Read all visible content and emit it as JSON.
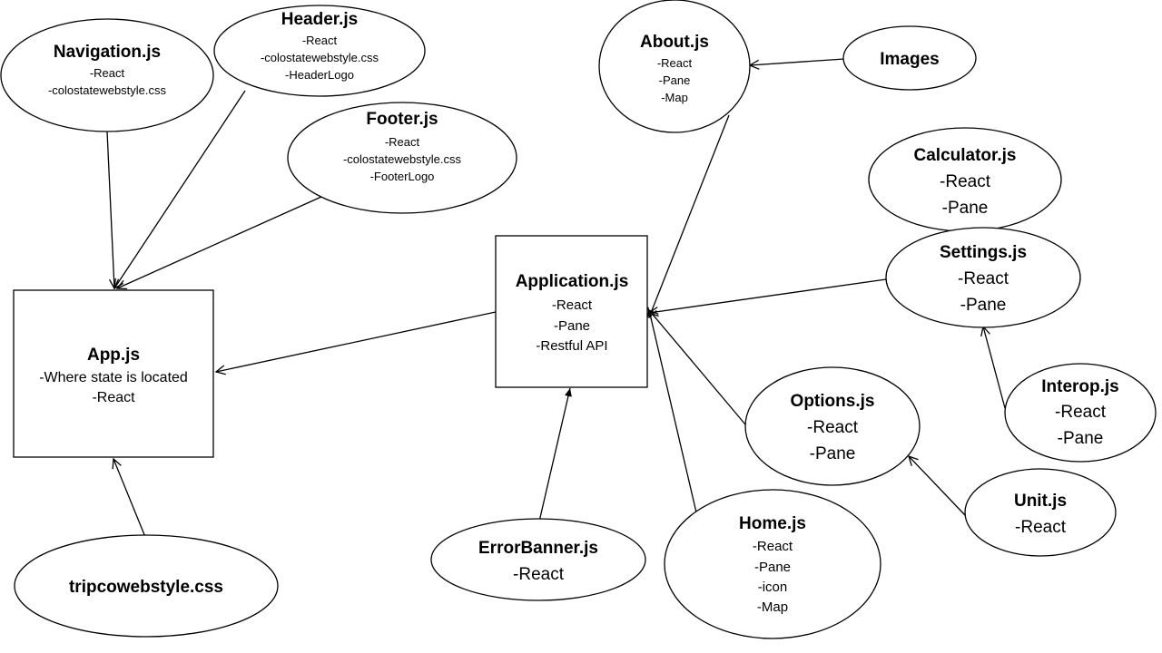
{
  "nodes": {
    "navigation": {
      "title": "Navigation.js",
      "items": [
        "-React",
        "-colostatewebstyle.css"
      ]
    },
    "header": {
      "title": "Header.js",
      "items": [
        "-React",
        "-colostatewebstyle.css",
        "-HeaderLogo"
      ]
    },
    "footer": {
      "title": "Footer.js",
      "items": [
        "-React",
        "-colostatewebstyle.css",
        "-FooterLogo"
      ]
    },
    "app": {
      "title": "App.js",
      "items": [
        "-Where state is located",
        "-React"
      ]
    },
    "tripco": {
      "title": "tripcowebstyle.css",
      "items": []
    },
    "application": {
      "title": "Application.js",
      "items": [
        "-React",
        "-Pane",
        "-Restful API"
      ]
    },
    "errorbanner": {
      "title": "ErrorBanner.js",
      "items": [
        "-React"
      ]
    },
    "about": {
      "title": "About.js",
      "items": [
        "-React",
        "-Pane",
        "-Map"
      ]
    },
    "images": {
      "title": "Images",
      "items": []
    },
    "calculator": {
      "title": "Calculator.js",
      "items": [
        "-React",
        "-Pane"
      ]
    },
    "settings": {
      "title": "Settings.js",
      "items": [
        "-React",
        "-Pane"
      ]
    },
    "interop": {
      "title": "Interop.js",
      "items": [
        "-React",
        "-Pane"
      ]
    },
    "options": {
      "title": "Options.js",
      "items": [
        "-React",
        "-Pane"
      ]
    },
    "unit": {
      "title": "Unit.js",
      "items": [
        "-React"
      ]
    },
    "home": {
      "title": "Home.js",
      "items": [
        "-React",
        "-Pane",
        "-icon",
        "-Map"
      ]
    }
  },
  "edges": [
    {
      "from": "navigation",
      "to": "app"
    },
    {
      "from": "header",
      "to": "app"
    },
    {
      "from": "footer",
      "to": "app"
    },
    {
      "from": "tripco",
      "to": "app"
    },
    {
      "from": "application",
      "to": "app"
    },
    {
      "from": "errorbanner",
      "to": "application"
    },
    {
      "from": "about",
      "to": "application"
    },
    {
      "from": "settings",
      "to": "application"
    },
    {
      "from": "options",
      "to": "application"
    },
    {
      "from": "home",
      "to": "application"
    },
    {
      "from": "images",
      "to": "about"
    },
    {
      "from": "interop",
      "to": "settings"
    },
    {
      "from": "unit",
      "to": "options"
    }
  ]
}
